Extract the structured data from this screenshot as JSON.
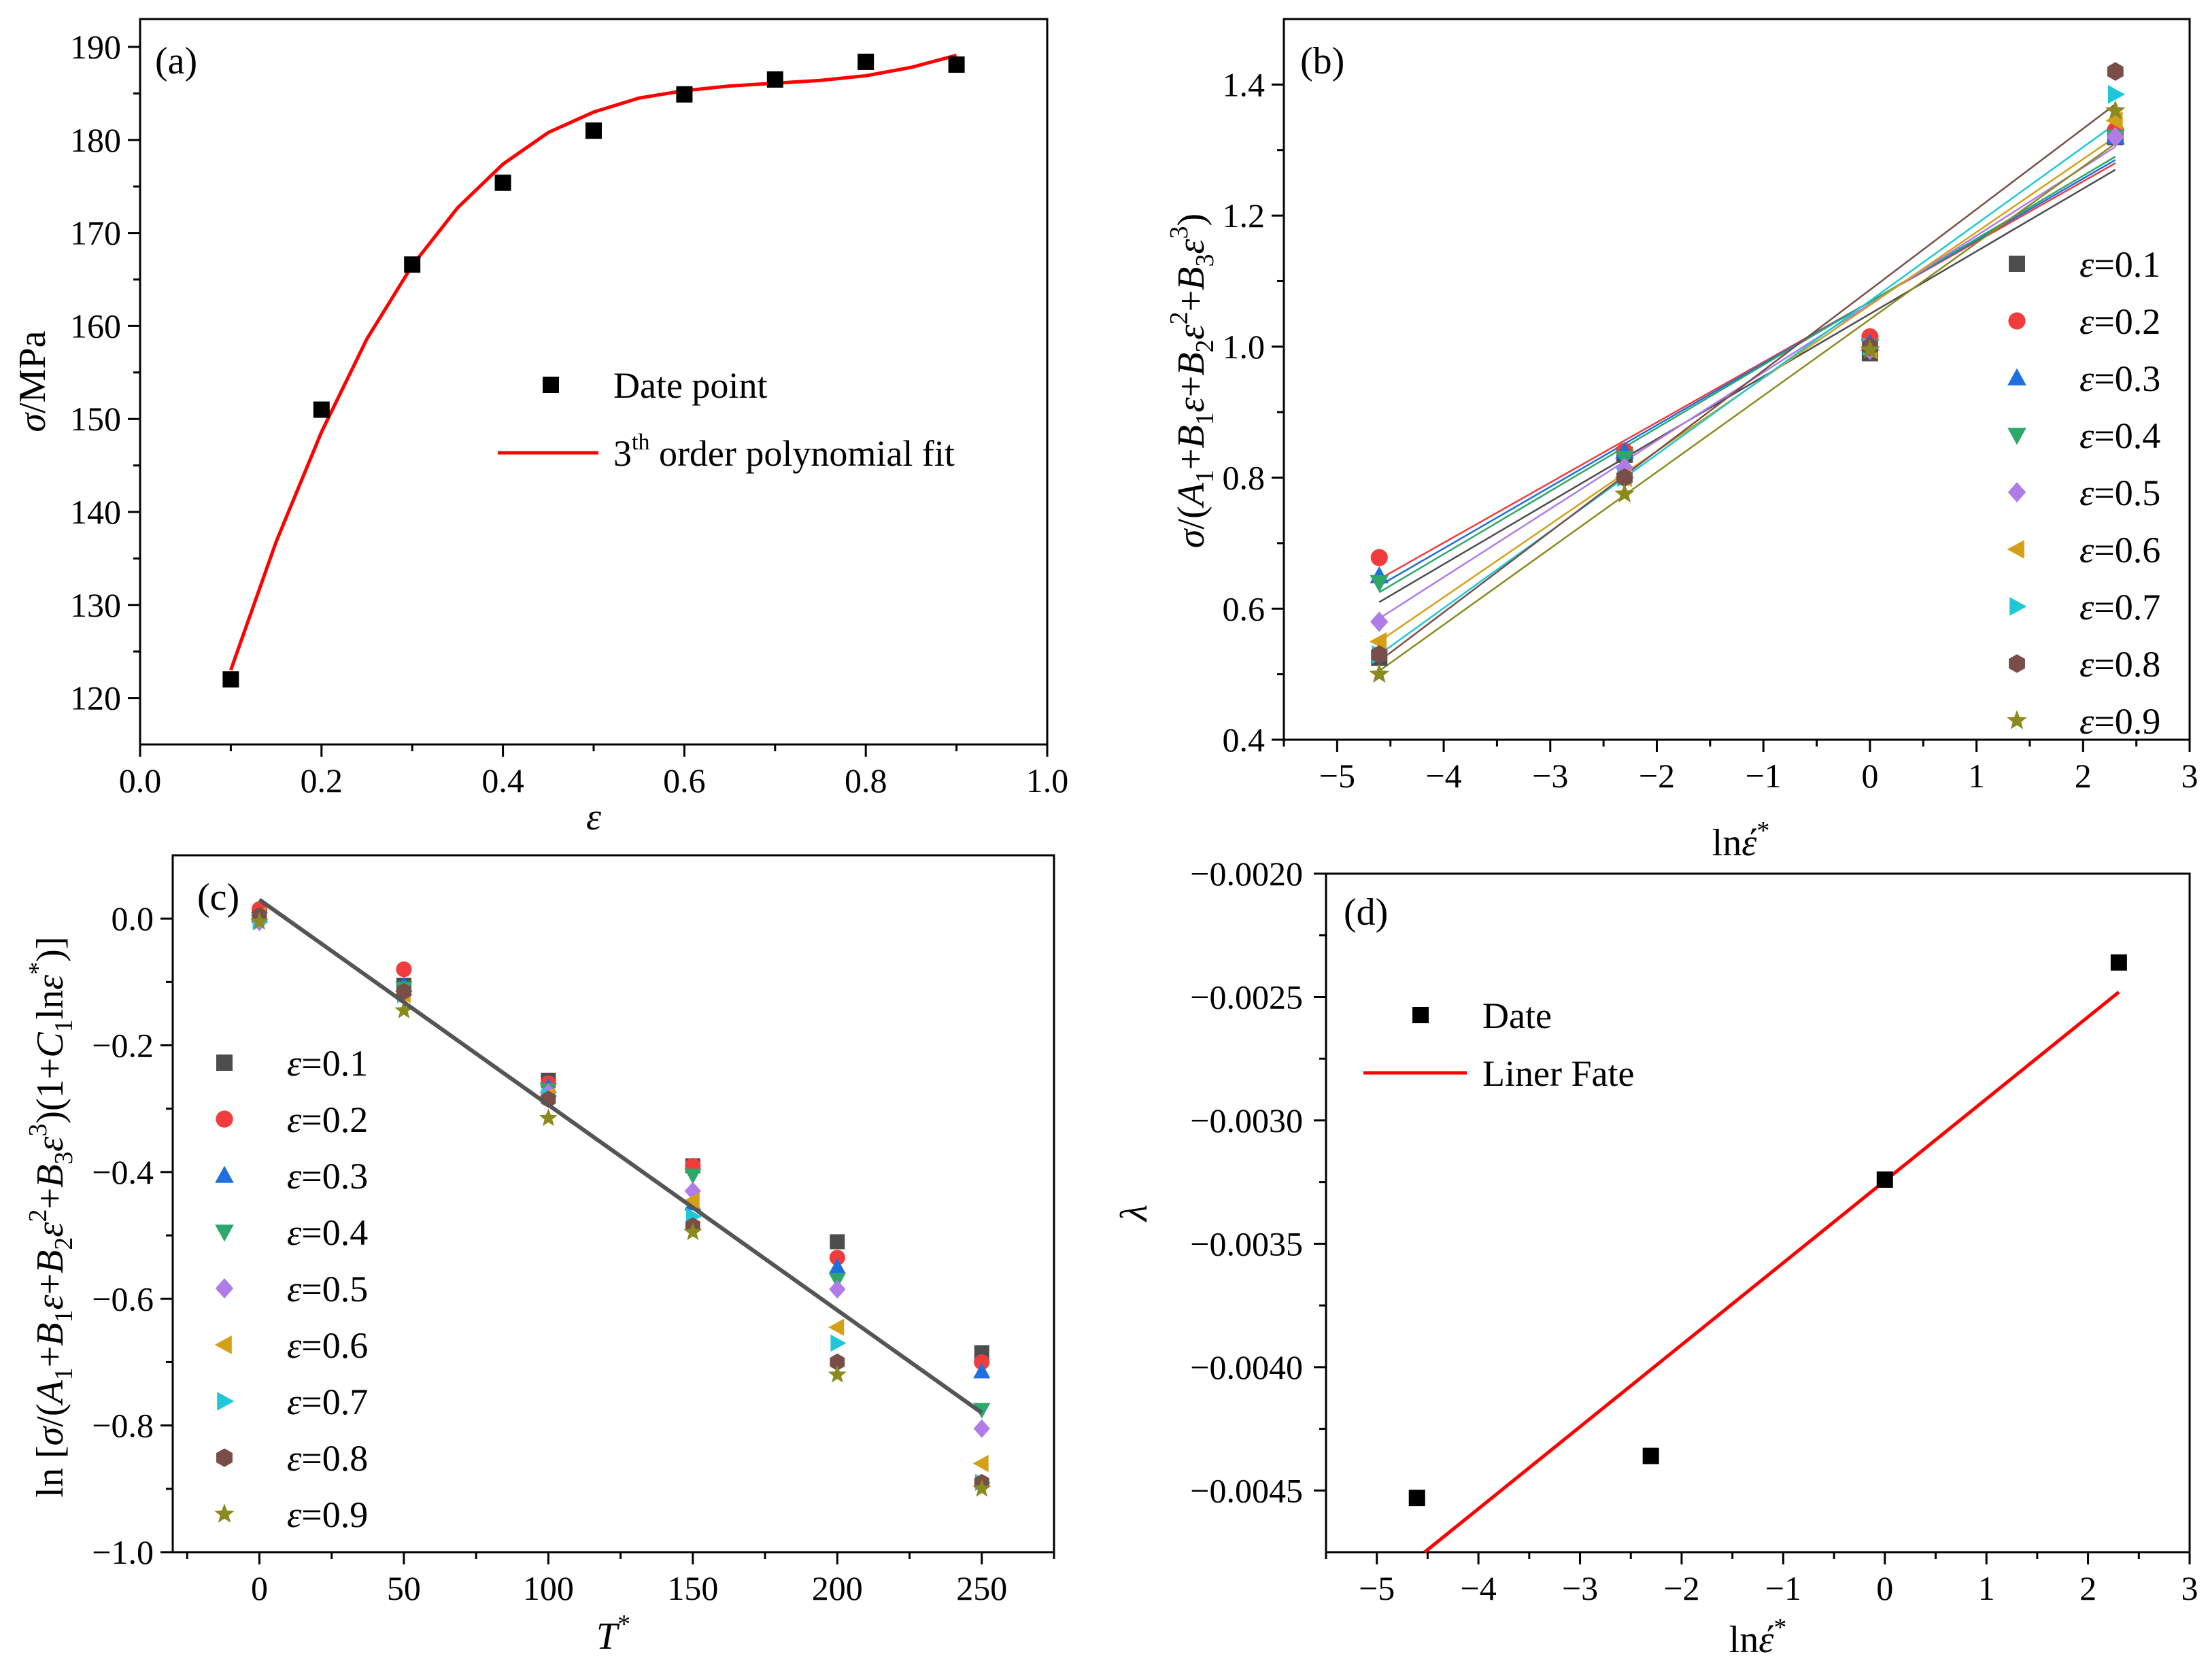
{
  "chart_data": [
    {
      "type": "scatter",
      "panel_label": "(a)",
      "xlabel": "ε",
      "ylabel": "σ/MPa",
      "xlim": [
        0.0,
        1.0
      ],
      "ylim": [
        115,
        193
      ],
      "xticks": [
        "0.0",
        "0.2",
        "0.4",
        "0.6",
        "0.8",
        "1.0"
      ],
      "yticks": [
        "120",
        "130",
        "140",
        "150",
        "160",
        "170",
        "180",
        "190"
      ],
      "legend_position": "center-right",
      "legend": [
        "Date point",
        "3th order polynomial fit"
      ],
      "series": [
        {
          "name": "Date point",
          "marker": "square",
          "color": "#000000",
          "x": [
            0.1,
            0.2,
            0.3,
            0.4,
            0.5,
            0.6,
            0.7,
            0.8,
            0.9
          ],
          "y": [
            122.0,
            151.0,
            166.6,
            175.4,
            181.0,
            184.9,
            186.5,
            188.4,
            188.1
          ]
        },
        {
          "name": "3th order polynomial fit",
          "type": "line",
          "color": "#ff0000",
          "x": [
            0.1,
            0.15,
            0.2,
            0.25,
            0.3,
            0.35,
            0.4,
            0.45,
            0.5,
            0.55,
            0.6,
            0.65,
            0.7,
            0.75,
            0.8,
            0.85,
            0.9
          ],
          "y": [
            123.0,
            136.8,
            148.6,
            158.6,
            166.5,
            172.7,
            177.4,
            180.8,
            183.0,
            184.5,
            185.3,
            185.8,
            186.1,
            186.4,
            186.9,
            187.8,
            189.1
          ]
        }
      ]
    },
    {
      "type": "scatter",
      "panel_label": "(b)",
      "xlabel": "lnέ*",
      "ylabel": "σ/(A1+B1ε+B2ε²+B3ε³)",
      "xlim": [
        -5.5,
        3
      ],
      "ylim": [
        0.4,
        1.5
      ],
      "xticks": [
        "−5",
        "−4",
        "−3",
        "−2",
        "−1",
        "0",
        "1",
        "2",
        "3"
      ],
      "yticks": [
        "0.4",
        "0.6",
        "0.8",
        "1.0",
        "1.2",
        "1.4"
      ],
      "legend_position": "right",
      "x": [
        -4.605,
        -2.303,
        0,
        2.303
      ],
      "series": [
        {
          "name": "ε=0.1",
          "marker": "square",
          "color": "#4d4d4d",
          "y": [
            0.525,
            0.835,
            0.99,
            1.32
          ],
          "fit": [
            0.61,
            1.27
          ]
        },
        {
          "name": "ε=0.2",
          "marker": "circle",
          "color": "#f03c3c",
          "y": [
            0.678,
            0.84,
            1.015,
            1.33
          ],
          "fit": [
            0.645,
            1.28
          ]
        },
        {
          "name": "ε=0.3",
          "marker": "triangle-up",
          "color": "#1f6fe0",
          "y": [
            0.65,
            0.84,
            1.005,
            1.32
          ],
          "fit": [
            0.635,
            1.285
          ]
        },
        {
          "name": "ε=0.4",
          "marker": "triangle-down",
          "color": "#2ca86a",
          "y": [
            0.64,
            0.83,
            1.0,
            1.32
          ],
          "fit": [
            0.625,
            1.29
          ]
        },
        {
          "name": "ε=0.5",
          "marker": "diamond",
          "color": "#b07ce8",
          "y": [
            0.58,
            0.815,
            0.995,
            1.32
          ],
          "fit": [
            0.585,
            1.305
          ]
        },
        {
          "name": "ε=0.6",
          "marker": "triangle-left",
          "color": "#d4a017",
          "y": [
            0.55,
            0.8,
            0.995,
            1.345
          ],
          "fit": [
            0.55,
            1.32
          ]
        },
        {
          "name": "ε=0.7",
          "marker": "triangle-right",
          "color": "#1ec8d8",
          "y": [
            0.53,
            0.8,
            1.0,
            1.385
          ],
          "fit": [
            0.53,
            1.34
          ]
        },
        {
          "name": "ε=0.8",
          "marker": "hexagon",
          "color": "#7a4e48",
          "y": [
            0.53,
            0.8,
            1.0,
            1.42
          ],
          "fit": [
            0.52,
            1.37
          ]
        },
        {
          "name": "ε=0.9",
          "marker": "star",
          "color": "#8a8a1e",
          "y": [
            0.5,
            0.775,
            0.995,
            1.36
          ],
          "fit": [
            0.505,
            1.31
          ]
        }
      ]
    },
    {
      "type": "scatter",
      "panel_label": "(c)",
      "xlabel": "T*",
      "ylabel": "ln [σ/(A1+B1ε+B2ε²+B3ε³)(1+C1lnε*)]",
      "xlim": [
        -30,
        275
      ],
      "ylim": [
        -1.0,
        0.1
      ],
      "xticks": [
        "0",
        "50",
        "100",
        "150",
        "200",
        "250"
      ],
      "yticks": [
        "−1.0",
        "−0.8",
        "−0.6",
        "−0.4",
        "−0.2",
        "0.0"
      ],
      "legend_position": "left",
      "x": [
        0,
        50,
        100,
        150,
        200,
        250
      ],
      "fit_line": {
        "x": [
          0,
          250
        ],
        "y": [
          0.03,
          -0.78
        ]
      },
      "series": [
        {
          "name": "ε=0.1",
          "marker": "square",
          "color": "#4d4d4d",
          "y": [
            0.005,
            -0.105,
            -0.255,
            -0.39,
            -0.51,
            -0.685
          ]
        },
        {
          "name": "ε=0.2",
          "marker": "circle",
          "color": "#f03c3c",
          "y": [
            0.015,
            -0.08,
            -0.26,
            -0.39,
            -0.535,
            -0.7
          ]
        },
        {
          "name": "ε=0.3",
          "marker": "triangle-up",
          "color": "#1f6fe0",
          "y": [
            0.005,
            -0.105,
            -0.265,
            -0.45,
            -0.55,
            -0.715
          ]
        },
        {
          "name": "ε=0.4",
          "marker": "triangle-down",
          "color": "#2ca86a",
          "y": [
            0.0,
            -0.11,
            -0.27,
            -0.405,
            -0.57,
            -0.775
          ]
        },
        {
          "name": "ε=0.5",
          "marker": "diamond",
          "color": "#b07ce8",
          "y": [
            -0.005,
            -0.12,
            -0.275,
            -0.43,
            -0.585,
            -0.805
          ]
        },
        {
          "name": "ε=0.6",
          "marker": "triangle-left",
          "color": "#d4a017",
          "y": [
            0.005,
            -0.12,
            -0.28,
            -0.445,
            -0.645,
            -0.86
          ]
        },
        {
          "name": "ε=0.7",
          "marker": "triangle-right",
          "color": "#1ec8d8",
          "y": [
            -0.005,
            -0.12,
            -0.28,
            -0.47,
            -0.67,
            -0.89
          ]
        },
        {
          "name": "ε=0.8",
          "marker": "hexagon",
          "color": "#7a4e48",
          "y": [
            0.005,
            -0.115,
            -0.285,
            -0.485,
            -0.7,
            -0.89
          ]
        },
        {
          "name": "ε=0.9",
          "marker": "star",
          "color": "#8a8a1e",
          "y": [
            -0.005,
            -0.145,
            -0.315,
            -0.495,
            -0.72,
            -0.9
          ]
        }
      ]
    },
    {
      "type": "scatter",
      "panel_label": "(d)",
      "xlabel": "lnέ*",
      "ylabel": "λ",
      "xlim": [
        -5.5,
        3
      ],
      "ylim": [
        -0.00475,
        -0.002
      ],
      "xticks": [
        "−5",
        "−4",
        "−3",
        "−2",
        "−1",
        "0",
        "1",
        "2",
        "3"
      ],
      "yticks": [
        "−0.0020",
        "−0.0025",
        "−0.0030",
        "−0.0035",
        "−0.0040",
        "−0.0045"
      ],
      "legend_position": "top-left",
      "legend": [
        "Date",
        "Liner Fate"
      ],
      "series": [
        {
          "name": "Date",
          "marker": "square",
          "color": "#000000",
          "x": [
            -4.605,
            -2.303,
            0,
            2.303
          ],
          "y": [
            -0.00453,
            -0.00436,
            -0.00324,
            -0.00236
          ]
        },
        {
          "name": "Liner Fate",
          "type": "line",
          "color": "#ff0000",
          "x": [
            -4.53,
            2.303
          ],
          "y": [
            -0.00475,
            -0.00248
          ]
        }
      ]
    }
  ]
}
